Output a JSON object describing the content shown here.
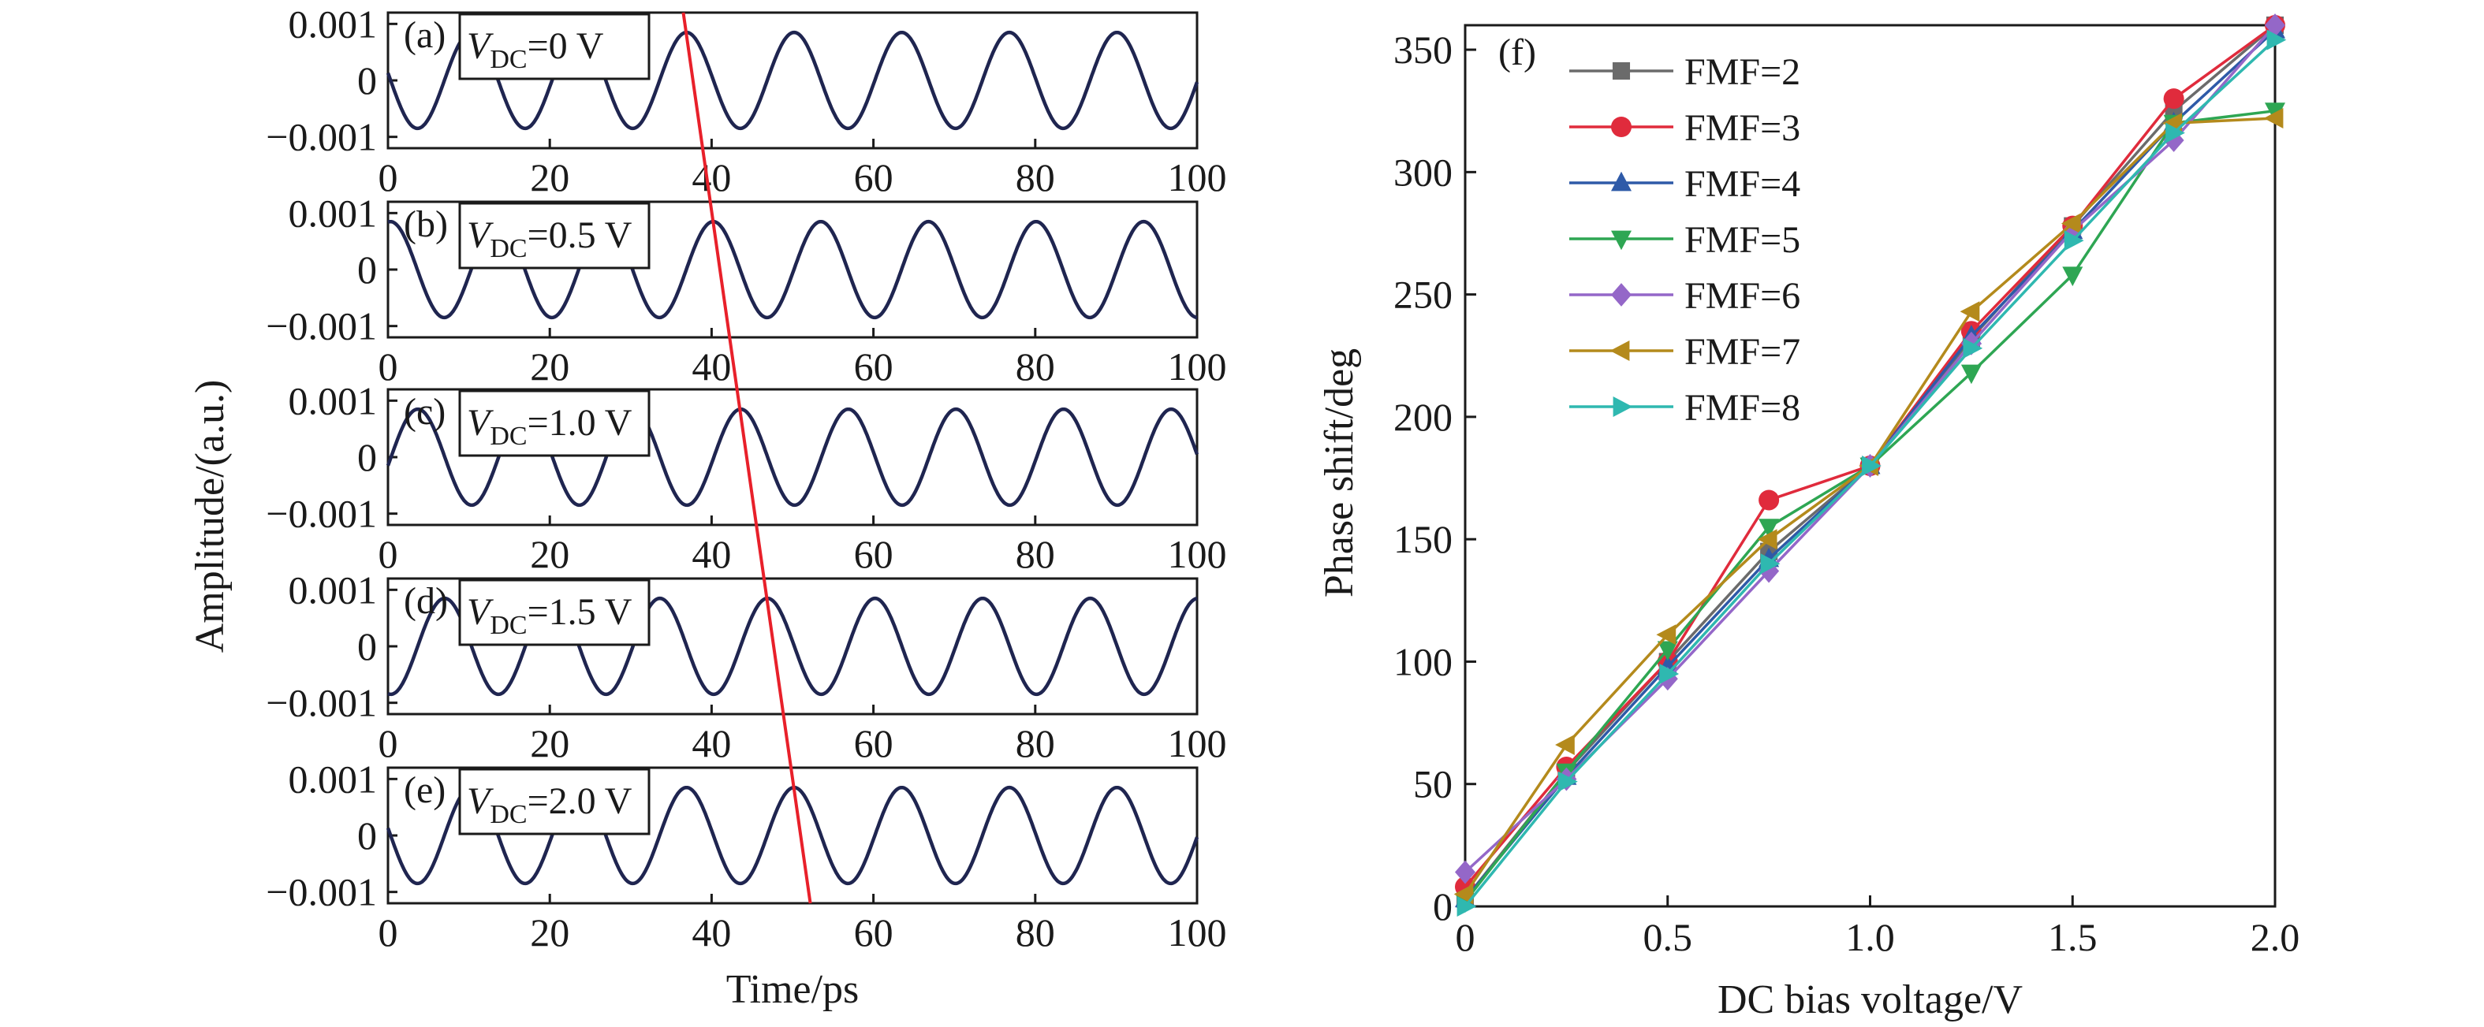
{
  "chart_data": [
    {
      "type": "line",
      "xlabel": "Time/ps",
      "ylabel": "Amplitude/(a.u.)",
      "xlim": [
        0,
        100
      ],
      "ylim": [
        -0.0012,
        0.0012
      ],
      "xticks": [
        "0",
        "20",
        "40",
        "60",
        "80",
        "100"
      ],
      "yticks": [
        "0.001",
        "0",
        "−0.001"
      ],
      "wave_amplitude": 0.00085,
      "wave_period_ps": 13.3,
      "line_color": "#1f2550",
      "marker_line": {
        "color": "#e8202a",
        "x_top": 36.5,
        "x_bottom": 52.2
      },
      "panels": [
        {
          "tag": "(a)",
          "v_sym": "V",
          "v_sub": "DC",
          "v_value": "=0 V",
          "peak_ps": 36.9
        },
        {
          "tag": "(b)",
          "v_sym": "V",
          "v_sub": "DC",
          "v_value": "=0.5 V",
          "peak_ps": 40.2
        },
        {
          "tag": "(c)",
          "v_sym": "V",
          "v_sub": "DC",
          "v_value": "=1.0 V",
          "peak_ps": 43.6
        },
        {
          "tag": "(d)",
          "v_sym": "V",
          "v_sub": "DC",
          "v_value": "=1.5 V",
          "peak_ps": 46.9
        },
        {
          "tag": "(e)",
          "v_sym": "V",
          "v_sub": "DC",
          "v_value": "=2.0 V",
          "peak_ps": 50.2
        }
      ]
    },
    {
      "type": "line",
      "panel_tag": "(f)",
      "xlabel": "DC bias voltage/V",
      "ylabel": "Phase shift/deg",
      "xlim": [
        0,
        2.0
      ],
      "ylim": [
        0,
        360
      ],
      "xticks": [
        "0",
        "0.5",
        "1.0",
        "1.5",
        "2.0"
      ],
      "yticks": [
        "0",
        "50",
        "100",
        "150",
        "200",
        "250",
        "300",
        "350"
      ],
      "x": [
        0,
        0.25,
        0.5,
        0.75,
        1.0,
        1.25,
        1.5,
        1.75,
        2.0
      ],
      "legend_position": "top-left",
      "series": [
        {
          "name": "FMF=2",
          "marker": "square",
          "color": "#6b6b6b",
          "values": [
            3,
            55,
            100,
            145,
            180,
            232,
            278,
            325,
            360
          ]
        },
        {
          "name": "FMF=3",
          "marker": "circle",
          "color": "#e02b3c",
          "values": [
            8,
            57,
            100,
            166,
            180,
            235,
            278,
            330,
            360
          ]
        },
        {
          "name": "FMF=4",
          "marker": "triangle-up",
          "color": "#2e5aa8",
          "values": [
            3,
            53,
            98,
            142,
            180,
            233,
            276,
            320,
            358
          ]
        },
        {
          "name": "FMF=5",
          "marker": "triangle-down",
          "color": "#2ea653",
          "values": [
            2,
            55,
            105,
            155,
            180,
            218,
            258,
            320,
            325
          ]
        },
        {
          "name": "FMF=6",
          "marker": "diamond",
          "color": "#9467c8",
          "values": [
            14,
            52,
            93,
            137,
            180,
            230,
            276,
            313,
            360
          ]
        },
        {
          "name": "FMF=7",
          "marker": "triangle-left",
          "color": "#b48a1c",
          "values": [
            5,
            66,
            111,
            150,
            180,
            243,
            279,
            320,
            322
          ]
        },
        {
          "name": "FMF=8",
          "marker": "triangle-right",
          "color": "#2fb8b0",
          "values": [
            0,
            51,
            95,
            140,
            180,
            228,
            272,
            316,
            354
          ]
        }
      ]
    }
  ]
}
